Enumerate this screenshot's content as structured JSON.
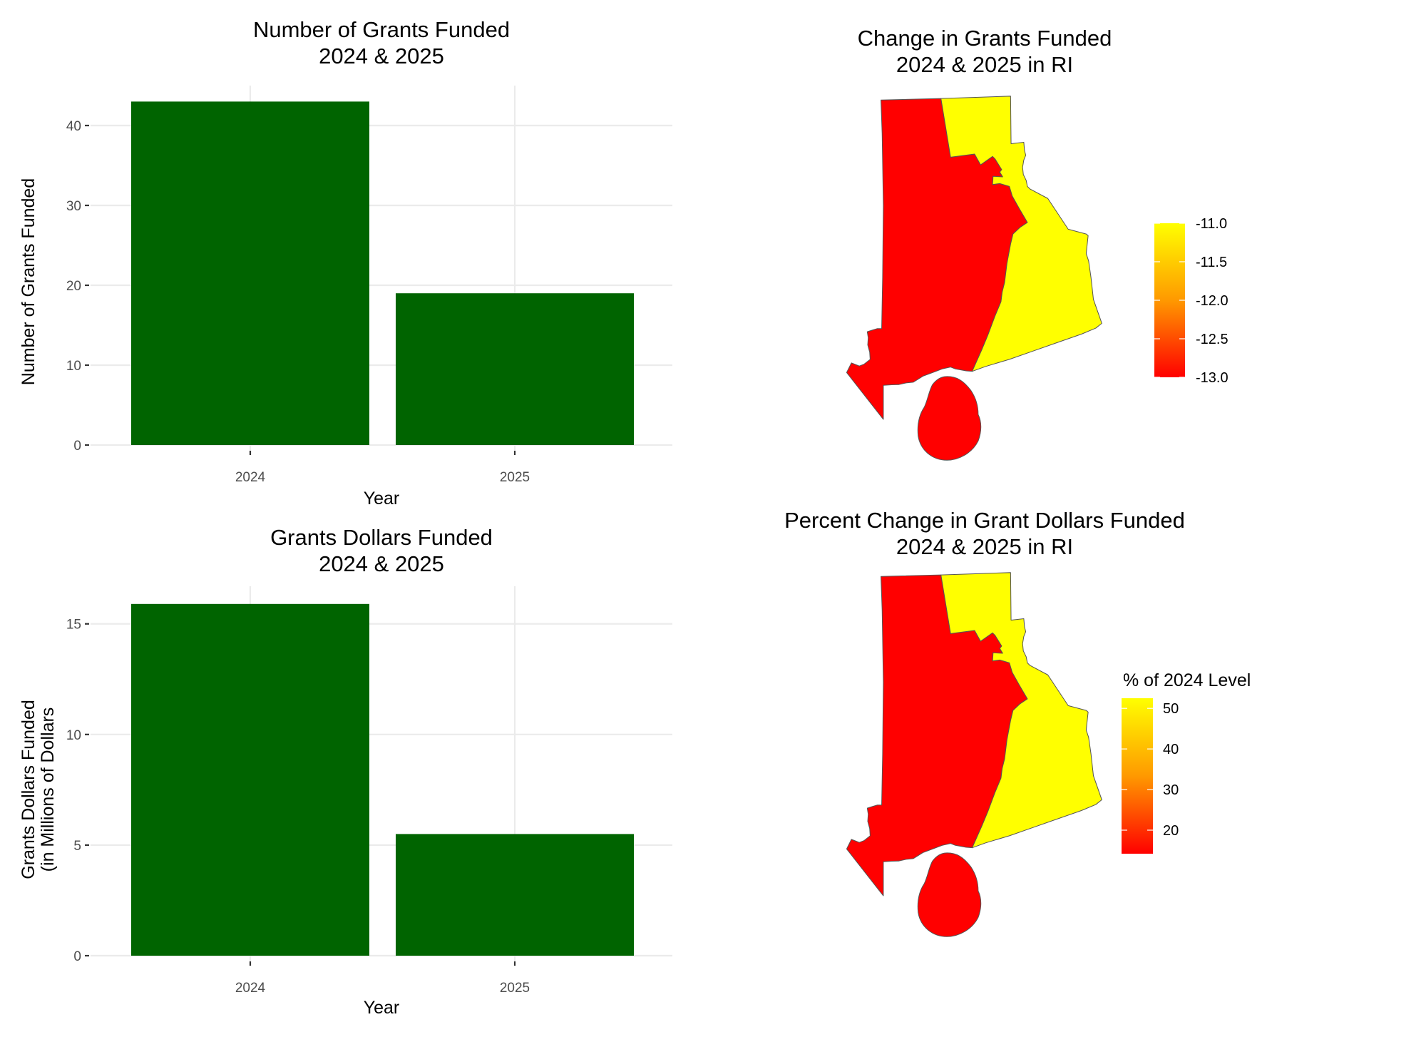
{
  "chart_data": [
    {
      "type": "bar",
      "title": "Number of Grants Funded\n2024 & 2025",
      "xlabel": "Year",
      "ylabel": "Number of Grants Funded",
      "categories": [
        "2024",
        "2025"
      ],
      "values": [
        43,
        19
      ],
      "ylim": [
        0,
        45
      ],
      "yticks": [
        0,
        10,
        20,
        30,
        40
      ],
      "bar_color": "#006400",
      "grid": true,
      "legend": "none"
    },
    {
      "type": "bar",
      "title": "Grants Dollars Funded\n2024 & 2025",
      "xlabel": "Year",
      "ylabel": "Grants Dollars Funded\n(in Millions of Dollars",
      "categories": [
        "2024",
        "2025"
      ],
      "values": [
        15.9,
        5.5
      ],
      "ylim": [
        0,
        16.7
      ],
      "yticks": [
        0,
        5,
        10,
        15
      ],
      "bar_color": "#006400",
      "grid": true,
      "legend": "none"
    },
    {
      "type": "heatmap",
      "subtype": "choropleth",
      "title": "Change in Grants Funded\n2024 & 2025 in RI",
      "legend_title": "",
      "legend_ticks": [
        "-11.0",
        "-11.5",
        "-12.0",
        "-12.5",
        "-13.0"
      ],
      "scale_range": [
        -13.0,
        -11.0
      ],
      "low_color": "#ff0000",
      "high_color": "#ffff00",
      "regions": [
        {
          "name": "west",
          "value": -13.0
        },
        {
          "name": "east",
          "value": -11.0
        },
        {
          "name": "island",
          "value": -13.0
        }
      ],
      "legend": "right"
    },
    {
      "type": "heatmap",
      "subtype": "choropleth",
      "title": "Percent Change in Grant Dollars Funded\n2024 & 2025 in RI",
      "legend_title": "% of 2024 Level",
      "legend_ticks": [
        "50",
        "40",
        "30",
        "20"
      ],
      "scale_range": [
        14.2,
        52.5
      ],
      "low_color": "#ff0000",
      "high_color": "#ffff00",
      "regions": [
        {
          "name": "west",
          "value": 14.2
        },
        {
          "name": "east",
          "value": 52.5
        },
        {
          "name": "island",
          "value": 14.2
        }
      ],
      "legend": "right"
    }
  ]
}
